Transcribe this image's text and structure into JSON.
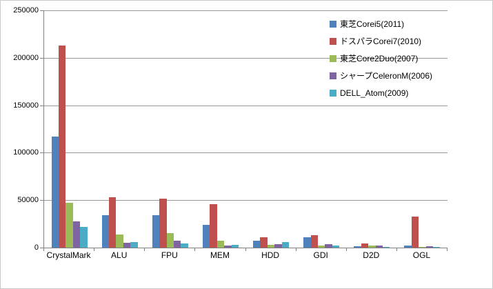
{
  "chart_data": {
    "type": "bar",
    "title": "",
    "xlabel": "",
    "ylabel": "",
    "categories": [
      "CrystalMark",
      "ALU",
      "FPU",
      "MEM",
      "HDD",
      "GDI",
      "D2D",
      "OGL"
    ],
    "series": [
      {
        "name": "東芝Corei5(2011)",
        "color": "#4F81BD",
        "values": [
          117000,
          34000,
          34000,
          24000,
          7000,
          11000,
          1500,
          2000
        ]
      },
      {
        "name": "ドスパラCorei7(2010)",
        "color": "#C0504D",
        "values": [
          213000,
          53000,
          51500,
          45500,
          11000,
          13000,
          4000,
          33000
        ]
      },
      {
        "name": "東芝Core2Duo(2007)",
        "color": "#9BBB59",
        "values": [
          47000,
          14000,
          15000,
          7500,
          3000,
          2000,
          2500,
          700
        ]
      },
      {
        "name": "シャープCeleronM(2006)",
        "color": "#8064A2",
        "values": [
          27500,
          5000,
          7000,
          2500,
          3500,
          3500,
          2500,
          1500
        ]
      },
      {
        "name": "DELL_Atom(2009)",
        "color": "#4BACC6",
        "values": [
          22000,
          5500,
          4000,
          3000,
          5800,
          2500,
          1000,
          700
        ]
      }
    ],
    "ylim": [
      0,
      250000
    ],
    "ytick_step": 50000,
    "ytick_labels": [
      "0",
      "50000",
      "100000",
      "150000",
      "200000",
      "250000"
    ],
    "grid": true,
    "legend_position": "top-right",
    "colors": {
      "gridline": "#989898",
      "axis": "#808080",
      "text": "#000000",
      "background": "#ffffff",
      "border": "#c9c9c9"
    }
  }
}
